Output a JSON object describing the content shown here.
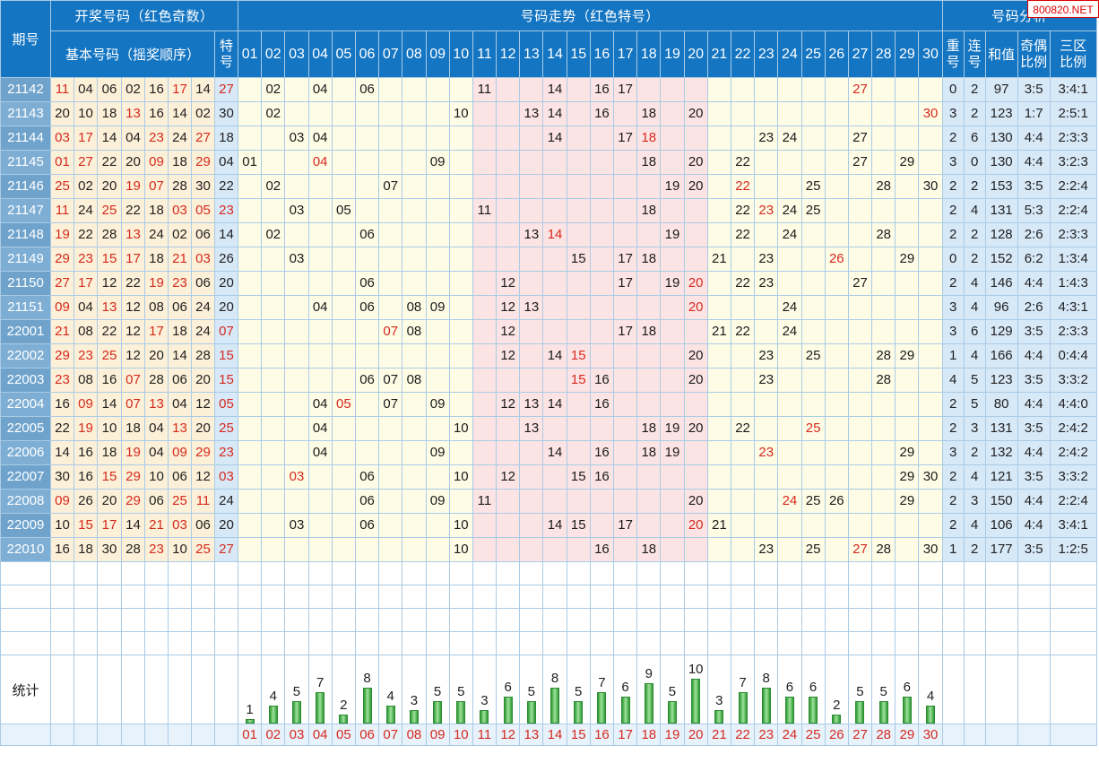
{
  "header": {
    "issue_label": "期号",
    "draw_group": "开奖号码（红色奇数）",
    "base_numbers": "基本号码（摇奖顺序）",
    "special_top": "特",
    "special_bottom": "号",
    "trend_group": "号码走势（红色特号）",
    "analysis_group": "号码分析",
    "col_repeat_top": "重",
    "col_repeat_bottom": "号",
    "col_consec_top": "连",
    "col_consec_bottom": "号",
    "col_sum": "和值",
    "col_oddeven_top": "奇偶",
    "col_oddeven_bottom": "比例",
    "col_zone_top": "三区",
    "col_zone_bottom": "比例",
    "numbers": [
      "01",
      "02",
      "03",
      "04",
      "05",
      "06",
      "07",
      "08",
      "09",
      "10",
      "11",
      "12",
      "13",
      "14",
      "15",
      "16",
      "17",
      "18",
      "19",
      "20",
      "21",
      "22",
      "23",
      "24",
      "25",
      "26",
      "27",
      "28",
      "29",
      "30"
    ]
  },
  "watermark": "800820.NET",
  "stats_label": "统计",
  "colors": {
    "header": "#1475c2",
    "odd_red": "#d52a1e",
    "bar_green": "#2f9a35"
  },
  "chart_data": {
    "type": "table",
    "rows": [
      {
        "issue": "21142",
        "base": [
          "11",
          "04",
          "06",
          "02",
          "16",
          "17",
          "14"
        ],
        "special": "27",
        "repeat": "0",
        "consec": "2",
        "sum": "97",
        "oddeven": "3:5",
        "zone": "3:4:1"
      },
      {
        "issue": "21143",
        "base": [
          "20",
          "10",
          "18",
          "13",
          "16",
          "14",
          "02"
        ],
        "special": "30",
        "repeat": "3",
        "consec": "2",
        "sum": "123",
        "oddeven": "1:7",
        "zone": "2:5:1"
      },
      {
        "issue": "21144",
        "base": [
          "03",
          "17",
          "14",
          "04",
          "23",
          "24",
          "27"
        ],
        "special": "18",
        "repeat": "2",
        "consec": "6",
        "sum": "130",
        "oddeven": "4:4",
        "zone": "2:3:3"
      },
      {
        "issue": "21145",
        "base": [
          "01",
          "27",
          "22",
          "20",
          "09",
          "18",
          "29"
        ],
        "special": "04",
        "repeat": "3",
        "consec": "0",
        "sum": "130",
        "oddeven": "4:4",
        "zone": "3:2:3"
      },
      {
        "issue": "21146",
        "base": [
          "25",
          "02",
          "20",
          "19",
          "07",
          "28",
          "30"
        ],
        "special": "22",
        "repeat": "2",
        "consec": "2",
        "sum": "153",
        "oddeven": "3:5",
        "zone": "2:2:4"
      },
      {
        "issue": "21147",
        "base": [
          "11",
          "24",
          "25",
          "22",
          "18",
          "03",
          "05"
        ],
        "special": "23",
        "repeat": "2",
        "consec": "4",
        "sum": "131",
        "oddeven": "5:3",
        "zone": "2:2:4"
      },
      {
        "issue": "21148",
        "base": [
          "19",
          "22",
          "28",
          "13",
          "24",
          "02",
          "06"
        ],
        "special": "14",
        "repeat": "2",
        "consec": "2",
        "sum": "128",
        "oddeven": "2:6",
        "zone": "2:3:3"
      },
      {
        "issue": "21149",
        "base": [
          "29",
          "23",
          "15",
          "17",
          "18",
          "21",
          "03"
        ],
        "special": "26",
        "repeat": "0",
        "consec": "2",
        "sum": "152",
        "oddeven": "6:2",
        "zone": "1:3:4"
      },
      {
        "issue": "21150",
        "base": [
          "27",
          "17",
          "12",
          "22",
          "19",
          "23",
          "06"
        ],
        "special": "20",
        "repeat": "2",
        "consec": "4",
        "sum": "146",
        "oddeven": "4:4",
        "zone": "1:4:3"
      },
      {
        "issue": "21151",
        "base": [
          "09",
          "04",
          "13",
          "12",
          "08",
          "06",
          "24"
        ],
        "special": "20",
        "repeat": "3",
        "consec": "4",
        "sum": "96",
        "oddeven": "2:6",
        "zone": "4:3:1"
      },
      {
        "issue": "22001",
        "base": [
          "21",
          "08",
          "22",
          "12",
          "17",
          "18",
          "24"
        ],
        "special": "07",
        "repeat": "3",
        "consec": "6",
        "sum": "129",
        "oddeven": "3:5",
        "zone": "2:3:3"
      },
      {
        "issue": "22002",
        "base": [
          "29",
          "23",
          "25",
          "12",
          "20",
          "14",
          "28"
        ],
        "special": "15",
        "repeat": "1",
        "consec": "4",
        "sum": "166",
        "oddeven": "4:4",
        "zone": "0:4:4"
      },
      {
        "issue": "22003",
        "base": [
          "23",
          "08",
          "16",
          "07",
          "28",
          "06",
          "20"
        ],
        "special": "15",
        "repeat": "4",
        "consec": "5",
        "sum": "123",
        "oddeven": "3:5",
        "zone": "3:3:2"
      },
      {
        "issue": "22004",
        "base": [
          "16",
          "09",
          "14",
          "07",
          "13",
          "04",
          "12"
        ],
        "special": "05",
        "repeat": "2",
        "consec": "5",
        "sum": "80",
        "oddeven": "4:4",
        "zone": "4:4:0"
      },
      {
        "issue": "22005",
        "base": [
          "22",
          "19",
          "10",
          "18",
          "04",
          "13",
          "20"
        ],
        "special": "25",
        "repeat": "2",
        "consec": "3",
        "sum": "131",
        "oddeven": "3:5",
        "zone": "2:4:2"
      },
      {
        "issue": "22006",
        "base": [
          "14",
          "16",
          "18",
          "19",
          "04",
          "09",
          "29"
        ],
        "special": "23",
        "repeat": "3",
        "consec": "2",
        "sum": "132",
        "oddeven": "4:4",
        "zone": "2:4:2"
      },
      {
        "issue": "22007",
        "base": [
          "30",
          "16",
          "15",
          "29",
          "10",
          "06",
          "12"
        ],
        "special": "03",
        "repeat": "2",
        "consec": "4",
        "sum": "121",
        "oddeven": "3:5",
        "zone": "3:3:2"
      },
      {
        "issue": "22008",
        "base": [
          "09",
          "26",
          "20",
          "29",
          "06",
          "25",
          "11"
        ],
        "special": "24",
        "repeat": "2",
        "consec": "3",
        "sum": "150",
        "oddeven": "4:4",
        "zone": "2:2:4"
      },
      {
        "issue": "22009",
        "base": [
          "10",
          "15",
          "17",
          "14",
          "21",
          "03",
          "06"
        ],
        "special": "20",
        "repeat": "2",
        "consec": "4",
        "sum": "106",
        "oddeven": "4:4",
        "zone": "3:4:1"
      },
      {
        "issue": "22010",
        "base": [
          "16",
          "18",
          "30",
          "28",
          "23",
          "10",
          "25"
        ],
        "special": "27",
        "repeat": "1",
        "consec": "2",
        "sum": "177",
        "oddeven": "3:5",
        "zone": "1:2:5"
      }
    ],
    "frequency": {
      "categories": [
        "01",
        "02",
        "03",
        "04",
        "05",
        "06",
        "07",
        "08",
        "09",
        "10",
        "11",
        "12",
        "13",
        "14",
        "15",
        "16",
        "17",
        "18",
        "19",
        "20",
        "21",
        "22",
        "23",
        "24",
        "25",
        "26",
        "27",
        "28",
        "29",
        "30"
      ],
      "values": [
        1,
        4,
        5,
        7,
        2,
        8,
        4,
        3,
        5,
        5,
        3,
        6,
        5,
        8,
        5,
        7,
        6,
        9,
        5,
        10,
        3,
        7,
        8,
        6,
        6,
        2,
        5,
        5,
        6,
        4
      ]
    }
  }
}
